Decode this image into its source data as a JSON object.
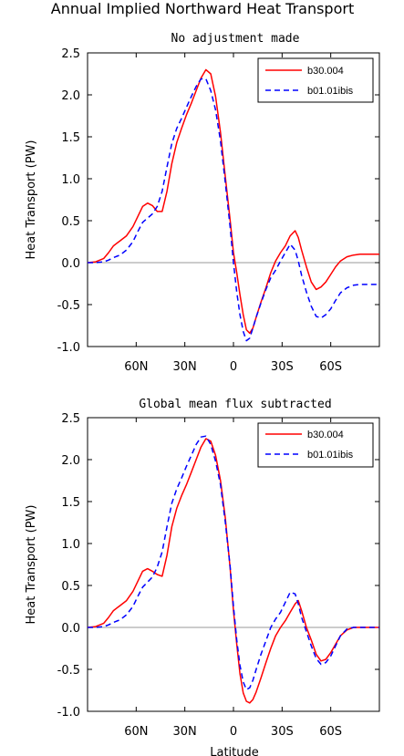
{
  "figure": {
    "title": "Annual Implied Northward Heat Transport"
  },
  "chart_data": [
    {
      "type": "line",
      "title": "No adjustment made",
      "xlabel": "",
      "ylabel": "Heat Transport (PW)",
      "xlim": [
        -90,
        90
      ],
      "ylim": [
        -1.0,
        2.5
      ],
      "x_ticks": [
        {
          "value": -60,
          "label": "60N"
        },
        {
          "value": -30,
          "label": "30N"
        },
        {
          "value": 0,
          "label": "0"
        },
        {
          "value": 30,
          "label": "30S"
        },
        {
          "value": 60,
          "label": "60S"
        }
      ],
      "y_ticks": [
        {
          "value": 2.5,
          "label": "2.5"
        },
        {
          "value": 2.0,
          "label": "2.0"
        },
        {
          "value": 1.5,
          "label": "1.5"
        },
        {
          "value": 1.0,
          "label": "1.0"
        },
        {
          "value": 0.5,
          "label": "0.5"
        },
        {
          "value": 0.0,
          "label": "0.0"
        },
        {
          "value": -0.5,
          "label": "-0.5"
        },
        {
          "value": -1.0,
          "label": "-1.0"
        }
      ],
      "zero_line": true,
      "legend_position": "top-right",
      "series": [
        {
          "name": "b30.004",
          "color": "#ff0000",
          "dash": "solid",
          "x": [
            -90,
            -85,
            -80,
            -77,
            -74,
            -70,
            -66,
            -62,
            -59,
            -56,
            -53,
            -50,
            -47,
            -44,
            -41,
            -38,
            -35,
            -32,
            -29,
            -26,
            -23,
            -20,
            -17,
            -14,
            -11,
            -8,
            -5,
            -2,
            0,
            2,
            4,
            6,
            8,
            10,
            12,
            14,
            17,
            20,
            23,
            26,
            29,
            32,
            35,
            38,
            40,
            42,
            45,
            48,
            51,
            54,
            57,
            60,
            63,
            66,
            70,
            74,
            78,
            82,
            86,
            90
          ],
          "y": [
            0.0,
            0.01,
            0.05,
            0.12,
            0.2,
            0.26,
            0.32,
            0.43,
            0.55,
            0.67,
            0.71,
            0.68,
            0.61,
            0.61,
            0.85,
            1.18,
            1.43,
            1.6,
            1.76,
            1.9,
            2.05,
            2.2,
            2.3,
            2.25,
            1.98,
            1.55,
            1.02,
            0.5,
            0.12,
            -0.12,
            -0.38,
            -0.62,
            -0.8,
            -0.84,
            -0.78,
            -0.65,
            -0.47,
            -0.3,
            -0.12,
            0.02,
            0.12,
            0.2,
            0.32,
            0.38,
            0.3,
            0.15,
            -0.05,
            -0.23,
            -0.32,
            -0.29,
            -0.23,
            -0.14,
            -0.05,
            0.02,
            0.07,
            0.09,
            0.1,
            0.1,
            0.1,
            0.1
          ]
        },
        {
          "name": "b01.01ibis",
          "color": "#0000ff",
          "dash": "dashed",
          "x": [
            -90,
            -85,
            -80,
            -77,
            -74,
            -70,
            -66,
            -62,
            -59,
            -56,
            -53,
            -50,
            -47,
            -44,
            -41,
            -38,
            -35,
            -32,
            -29,
            -26,
            -23,
            -20,
            -17,
            -14,
            -11,
            -8,
            -5,
            -2,
            0,
            2,
            4,
            6,
            8,
            10,
            12,
            14,
            17,
            20,
            23,
            26,
            29,
            32,
            35,
            38,
            40,
            42,
            45,
            48,
            51,
            54,
            57,
            60,
            63,
            66,
            70,
            74,
            78,
            82,
            86,
            90
          ],
          "y": [
            0.0,
            0.0,
            0.01,
            0.03,
            0.06,
            0.09,
            0.15,
            0.25,
            0.37,
            0.48,
            0.53,
            0.58,
            0.67,
            0.85,
            1.14,
            1.42,
            1.6,
            1.72,
            1.85,
            1.98,
            2.1,
            2.19,
            2.19,
            2.05,
            1.82,
            1.45,
            0.95,
            0.42,
            0.0,
            -0.35,
            -0.62,
            -0.82,
            -0.93,
            -0.9,
            -0.78,
            -0.65,
            -0.48,
            -0.32,
            -0.18,
            -0.09,
            0.02,
            0.12,
            0.22,
            0.15,
            0.02,
            -0.15,
            -0.35,
            -0.52,
            -0.64,
            -0.66,
            -0.62,
            -0.55,
            -0.45,
            -0.36,
            -0.3,
            -0.27,
            -0.26,
            -0.26,
            -0.26,
            -0.26
          ]
        }
      ]
    },
    {
      "type": "line",
      "title": "Global mean flux subtracted",
      "xlabel": "Latitude",
      "ylabel": "Heat Transport (PW)",
      "xlim": [
        -90,
        90
      ],
      "ylim": [
        -1.0,
        2.5
      ],
      "x_ticks": [
        {
          "value": -60,
          "label": "60N"
        },
        {
          "value": -30,
          "label": "30N"
        },
        {
          "value": 0,
          "label": "0"
        },
        {
          "value": 30,
          "label": "30S"
        },
        {
          "value": 60,
          "label": "60S"
        }
      ],
      "y_ticks": [
        {
          "value": 2.5,
          "label": "2.5"
        },
        {
          "value": 2.0,
          "label": "2.0"
        },
        {
          "value": 1.5,
          "label": "1.5"
        },
        {
          "value": 1.0,
          "label": "1.0"
        },
        {
          "value": 0.5,
          "label": "0.5"
        },
        {
          "value": 0.0,
          "label": "0.0"
        },
        {
          "value": -0.5,
          "label": "-0.5"
        },
        {
          "value": -1.0,
          "label": "-1.0"
        }
      ],
      "zero_line": true,
      "legend_position": "top-right",
      "series": [
        {
          "name": "b30.004",
          "color": "#ff0000",
          "dash": "solid",
          "x": [
            -90,
            -85,
            -80,
            -77,
            -74,
            -70,
            -66,
            -62,
            -59,
            -56,
            -53,
            -50,
            -47,
            -44,
            -41,
            -38,
            -35,
            -32,
            -29,
            -26,
            -23,
            -20,
            -17,
            -14,
            -11,
            -8,
            -5,
            -2,
            0,
            2,
            4,
            6,
            8,
            10,
            12,
            14,
            17,
            20,
            23,
            26,
            29,
            32,
            35,
            38,
            40,
            42,
            45,
            48,
            51,
            54,
            57,
            60,
            63,
            66,
            70,
            74,
            78,
            82,
            86,
            90
          ],
          "y": [
            0.0,
            0.01,
            0.05,
            0.12,
            0.2,
            0.26,
            0.32,
            0.43,
            0.55,
            0.67,
            0.7,
            0.67,
            0.63,
            0.61,
            0.86,
            1.2,
            1.42,
            1.57,
            1.7,
            1.85,
            2.0,
            2.15,
            2.25,
            2.22,
            2.05,
            1.75,
            1.3,
            0.7,
            0.2,
            -0.2,
            -0.55,
            -0.78,
            -0.88,
            -0.9,
            -0.86,
            -0.77,
            -0.6,
            -0.42,
            -0.25,
            -0.1,
            0.0,
            0.08,
            0.18,
            0.28,
            0.32,
            0.2,
            0.0,
            -0.15,
            -0.32,
            -0.4,
            -0.38,
            -0.3,
            -0.2,
            -0.1,
            -0.03,
            0.0,
            0.0,
            0.0,
            0.0,
            0.0
          ]
        },
        {
          "name": "b01.01ibis",
          "color": "#0000ff",
          "dash": "dashed",
          "x": [
            -90,
            -85,
            -80,
            -77,
            -74,
            -70,
            -66,
            -62,
            -59,
            -56,
            -53,
            -50,
            -47,
            -44,
            -41,
            -38,
            -35,
            -32,
            -29,
            -26,
            -23,
            -20,
            -17,
            -14,
            -11,
            -8,
            -5,
            -2,
            0,
            2,
            4,
            6,
            8,
            10,
            12,
            14,
            17,
            20,
            23,
            26,
            29,
            32,
            35,
            38,
            40,
            42,
            45,
            48,
            51,
            54,
            57,
            60,
            63,
            66,
            70,
            74,
            78,
            82,
            86,
            90
          ],
          "y": [
            0.0,
            0.0,
            0.01,
            0.03,
            0.06,
            0.09,
            0.15,
            0.25,
            0.37,
            0.48,
            0.54,
            0.6,
            0.72,
            0.9,
            1.2,
            1.48,
            1.65,
            1.78,
            1.92,
            2.05,
            2.18,
            2.27,
            2.28,
            2.18,
            1.98,
            1.7,
            1.25,
            0.72,
            0.25,
            -0.15,
            -0.45,
            -0.65,
            -0.74,
            -0.72,
            -0.63,
            -0.5,
            -0.32,
            -0.16,
            0.0,
            0.1,
            0.18,
            0.3,
            0.42,
            0.4,
            0.28,
            0.12,
            -0.05,
            -0.22,
            -0.37,
            -0.44,
            -0.42,
            -0.34,
            -0.22,
            -0.1,
            -0.02,
            0.0,
            0.0,
            0.0,
            0.0,
            0.0
          ]
        }
      ]
    }
  ]
}
